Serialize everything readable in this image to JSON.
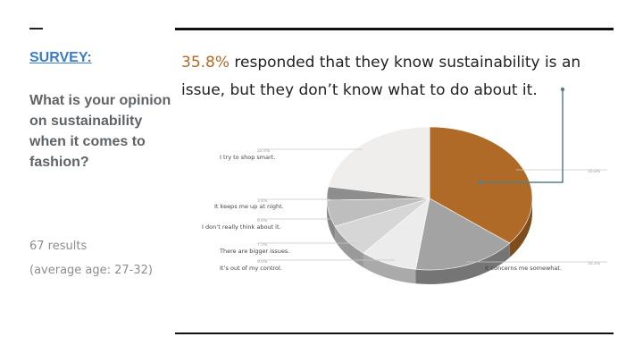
{
  "slide": {
    "dash": "—",
    "survey_label": "SURVEY:",
    "question": "What is your opinion on sustainability when it comes to fashion?",
    "results": "67 results",
    "average_age": "(average age: 27-32)",
    "headline_pct": "35.8%",
    "headline_text": " responded that they know sustainability is an issue, but they don’t know what to do about it."
  },
  "colors": {
    "accent": "#b06a27",
    "link": "#3b7bc7",
    "question": "#5f6368"
  },
  "chart_data": {
    "type": "pie",
    "title": "",
    "slices": [
      {
        "label": "",
        "value": 35.8,
        "pct_label": "35.8%",
        "color": "#b06a27"
      },
      {
        "label": "It concerns me somewhat.",
        "value": 16.4,
        "pct_label": "16.4%",
        "color": "#a3a3a3"
      },
      {
        "label": "It’s out of my control.",
        "value": 9.0,
        "pct_label": "9.0%",
        "color": "#ececec"
      },
      {
        "label": "There are bigger issues.",
        "value": 7.5,
        "pct_label": "7.5%",
        "color": "#d6d6d6"
      },
      {
        "label": "I don’t really think about it.",
        "value": 6.0,
        "pct_label": "6.0%",
        "color": "#bebebe"
      },
      {
        "label": "It keeps me up at night.",
        "value": 3.0,
        "pct_label": "3.0%",
        "color": "#8e8e8e"
      },
      {
        "label": "I try to shop smart.",
        "value": 22.4,
        "pct_label": "22.4%",
        "color": "#efeeec"
      }
    ]
  }
}
